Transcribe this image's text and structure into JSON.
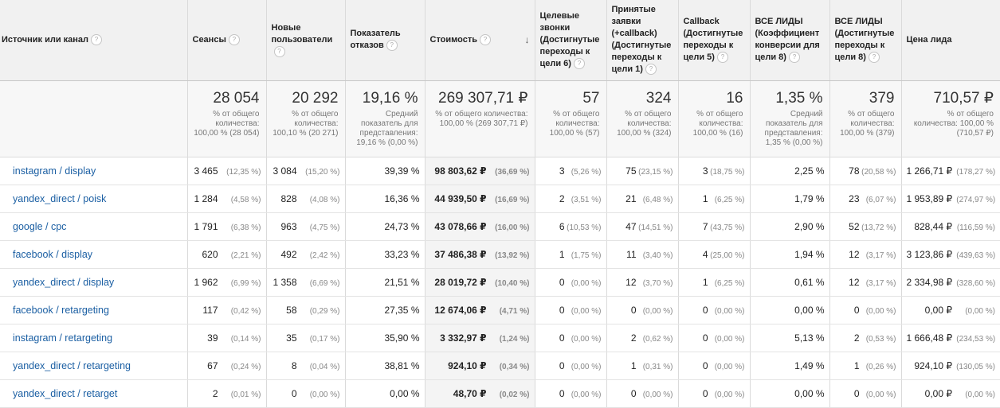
{
  "headers": [
    {
      "label": "Источник или канал",
      "help": "?"
    },
    {
      "label": "Сеансы",
      "help": "?"
    },
    {
      "label": "Новые пользователи",
      "help": "?"
    },
    {
      "label": "Показатель отказов",
      "help": "?"
    },
    {
      "label": "Стоимость",
      "help": "?",
      "sort": "↓"
    },
    {
      "label": "Целевые звонки (Достигнутые переходы к цели 6)",
      "help": "?"
    },
    {
      "label": "Принятые заявки (+callback) (Достигнутые переходы к цели 1)",
      "help": "?"
    },
    {
      "label": "Callback (Достигнутые переходы к цели 5)",
      "help": "?"
    },
    {
      "label": "ВСЕ ЛИДЫ (Коэффициент конверсии для цели 8)",
      "help": "?"
    },
    {
      "label": "ВСЕ ЛИДЫ (Достигнутые переходы к цели 8)",
      "help": "?"
    },
    {
      "label": "Цена лида"
    }
  ],
  "totals": [
    {
      "value": "28 054",
      "note": "% от общего количества: 100,00 % (28 054)"
    },
    {
      "value": "20 292",
      "note": "% от общего количества: 100,10 % (20 271)"
    },
    {
      "value": "19,16 %",
      "note": "Средний показатель для представления: 19,16 % (0,00 %)"
    },
    {
      "value": "269 307,71 ₽",
      "note": "% от общего количества: 100,00 % (269 307,71 ₽)"
    },
    {
      "value": "57",
      "note": "% от общего количества: 100,00 % (57)"
    },
    {
      "value": "324",
      "note": "% от общего количества: 100,00 % (324)"
    },
    {
      "value": "16",
      "note": "% от общего количества: 100,00 % (16)"
    },
    {
      "value": "1,35 %",
      "note": "Средний показатель для представления: 1,35 % (0,00 %)"
    },
    {
      "value": "379",
      "note": "% от общего количества: 100,00 % (379)"
    },
    {
      "value": "710,57 ₽",
      "note": "% от общего количества: 100,00 % (710,57 ₽)"
    }
  ],
  "rows": [
    {
      "source": "instagram / display",
      "sessions": "3 465",
      "sessions_pct": "(12,35 %)",
      "new_users": "3 084",
      "new_users_pct": "(15,20 %)",
      "bounce": "39,39 %",
      "cost": "98 803,62 ₽",
      "cost_pct": "(36,69 %)",
      "calls": "3",
      "calls_pct": "(5,26 %)",
      "requests": "75",
      "requests_pct": "(23,15 %)",
      "callback": "3",
      "callback_pct": "(18,75 %)",
      "conv": "2,25 %",
      "leads": "78",
      "leads_pct": "(20,58 %)",
      "cpl": "1 266,71 ₽",
      "cpl_pct": "(178,27 %)"
    },
    {
      "source": "yandex_direct / poisk",
      "sessions": "1 284",
      "sessions_pct": "(4,58 %)",
      "new_users": "828",
      "new_users_pct": "(4,08 %)",
      "bounce": "16,36 %",
      "cost": "44 939,50 ₽",
      "cost_pct": "(16,69 %)",
      "calls": "2",
      "calls_pct": "(3,51 %)",
      "requests": "21",
      "requests_pct": "(6,48 %)",
      "callback": "1",
      "callback_pct": "(6,25 %)",
      "conv": "1,79 %",
      "leads": "23",
      "leads_pct": "(6,07 %)",
      "cpl": "1 953,89 ₽",
      "cpl_pct": "(274,97 %)"
    },
    {
      "source": "google / cpc",
      "sessions": "1 791",
      "sessions_pct": "(6,38 %)",
      "new_users": "963",
      "new_users_pct": "(4,75 %)",
      "bounce": "24,73 %",
      "cost": "43 078,66 ₽",
      "cost_pct": "(16,00 %)",
      "calls": "6",
      "calls_pct": "(10,53 %)",
      "requests": "47",
      "requests_pct": "(14,51 %)",
      "callback": "7",
      "callback_pct": "(43,75 %)",
      "conv": "2,90 %",
      "leads": "52",
      "leads_pct": "(13,72 %)",
      "cpl": "828,44 ₽",
      "cpl_pct": "(116,59 %)"
    },
    {
      "source": "facebook / display",
      "sessions": "620",
      "sessions_pct": "(2,21 %)",
      "new_users": "492",
      "new_users_pct": "(2,42 %)",
      "bounce": "33,23 %",
      "cost": "37 486,38 ₽",
      "cost_pct": "(13,92 %)",
      "calls": "1",
      "calls_pct": "(1,75 %)",
      "requests": "11",
      "requests_pct": "(3,40 %)",
      "callback": "4",
      "callback_pct": "(25,00 %)",
      "conv": "1,94 %",
      "leads": "12",
      "leads_pct": "(3,17 %)",
      "cpl": "3 123,86 ₽",
      "cpl_pct": "(439,63 %)"
    },
    {
      "source": "yandex_direct / display",
      "sessions": "1 962",
      "sessions_pct": "(6,99 %)",
      "new_users": "1 358",
      "new_users_pct": "(6,69 %)",
      "bounce": "21,51 %",
      "cost": "28 019,72 ₽",
      "cost_pct": "(10,40 %)",
      "calls": "0",
      "calls_pct": "(0,00 %)",
      "requests": "12",
      "requests_pct": "(3,70 %)",
      "callback": "1",
      "callback_pct": "(6,25 %)",
      "conv": "0,61 %",
      "leads": "12",
      "leads_pct": "(3,17 %)",
      "cpl": "2 334,98 ₽",
      "cpl_pct": "(328,60 %)"
    },
    {
      "source": "facebook / retargeting",
      "sessions": "117",
      "sessions_pct": "(0,42 %)",
      "new_users": "58",
      "new_users_pct": "(0,29 %)",
      "bounce": "27,35 %",
      "cost": "12 674,06 ₽",
      "cost_pct": "(4,71 %)",
      "calls": "0",
      "calls_pct": "(0,00 %)",
      "requests": "0",
      "requests_pct": "(0,00 %)",
      "callback": "0",
      "callback_pct": "(0,00 %)",
      "conv": "0,00 %",
      "leads": "0",
      "leads_pct": "(0,00 %)",
      "cpl": "0,00 ₽",
      "cpl_pct": "(0,00 %)"
    },
    {
      "source": "instagram / retargeting",
      "sessions": "39",
      "sessions_pct": "(0,14 %)",
      "new_users": "35",
      "new_users_pct": "(0,17 %)",
      "bounce": "35,90 %",
      "cost": "3 332,97 ₽",
      "cost_pct": "(1,24 %)",
      "calls": "0",
      "calls_pct": "(0,00 %)",
      "requests": "2",
      "requests_pct": "(0,62 %)",
      "callback": "0",
      "callback_pct": "(0,00 %)",
      "conv": "5,13 %",
      "leads": "2",
      "leads_pct": "(0,53 %)",
      "cpl": "1 666,48 ₽",
      "cpl_pct": "(234,53 %)"
    },
    {
      "source": "yandex_direct / retargeting",
      "sessions": "67",
      "sessions_pct": "(0,24 %)",
      "new_users": "8",
      "new_users_pct": "(0,04 %)",
      "bounce": "38,81 %",
      "cost": "924,10 ₽",
      "cost_pct": "(0,34 %)",
      "calls": "0",
      "calls_pct": "(0,00 %)",
      "requests": "1",
      "requests_pct": "(0,31 %)",
      "callback": "0",
      "callback_pct": "(0,00 %)",
      "conv": "1,49 %",
      "leads": "1",
      "leads_pct": "(0,26 %)",
      "cpl": "924,10 ₽",
      "cpl_pct": "(130,05 %)"
    },
    {
      "source": "yandex_direct / retarget",
      "sessions": "2",
      "sessions_pct": "(0,01 %)",
      "new_users": "0",
      "new_users_pct": "(0,00 %)",
      "bounce": "0,00 %",
      "cost": "48,70 ₽",
      "cost_pct": "(0,02 %)",
      "calls": "0",
      "calls_pct": "(0,00 %)",
      "requests": "0",
      "requests_pct": "(0,00 %)",
      "callback": "0",
      "callback_pct": "(0,00 %)",
      "conv": "0,00 %",
      "leads": "0",
      "leads_pct": "(0,00 %)",
      "cpl": "0,00 ₽",
      "cpl_pct": "(0,00 %)"
    }
  ]
}
